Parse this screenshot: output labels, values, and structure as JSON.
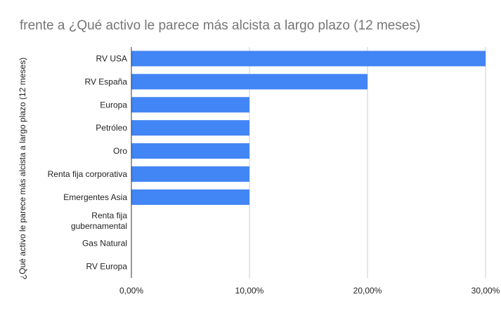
{
  "chart_data": {
    "type": "bar",
    "orientation": "horizontal",
    "title": "frente a ¿Qué activo le parece más alcista a largo plazo (12 meses)",
    "xlabel": "",
    "ylabel": "¿Qué activo le parece más alcista a largo plazo (12 meses)",
    "categories": [
      "RV USA",
      "RV España",
      "Europa",
      "Petróleo",
      "Oro",
      "Renta fija corporativa",
      "Emergentes Asia",
      "Renta fija gubernamental",
      "Gas Natural",
      "RV Europa"
    ],
    "values": [
      30,
      20,
      10,
      10,
      10,
      10,
      10,
      0,
      0,
      0
    ],
    "xlim": [
      0,
      30
    ],
    "xticks": [
      {
        "value": 0,
        "label": "0,00%"
      },
      {
        "value": 10,
        "label": "10,00%"
      },
      {
        "value": 20,
        "label": "20,00%"
      },
      {
        "value": 30,
        "label": "30,00%"
      }
    ],
    "grid": true,
    "legend": "none",
    "bar_color": "#4285f4"
  }
}
